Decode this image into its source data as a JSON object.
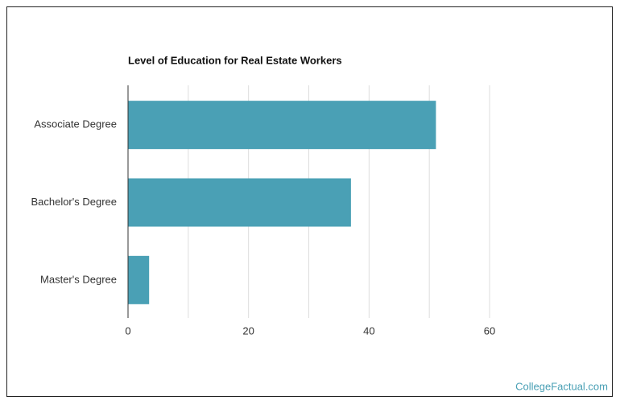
{
  "chart_data": {
    "type": "bar",
    "orientation": "horizontal",
    "title": "Level of Education for Real Estate Workers",
    "categories": [
      "Associate Degree",
      "Bachelor's Degree",
      "Master's Degree"
    ],
    "values": [
      51.1,
      37.0,
      3.5
    ],
    "color": "#4aa0b5",
    "xlim": [
      0,
      60
    ],
    "xticks": [
      0,
      20,
      40,
      60
    ],
    "minor_xticks": [
      10,
      30,
      50
    ],
    "grid": true
  },
  "footer": "CollegeFactual.com"
}
